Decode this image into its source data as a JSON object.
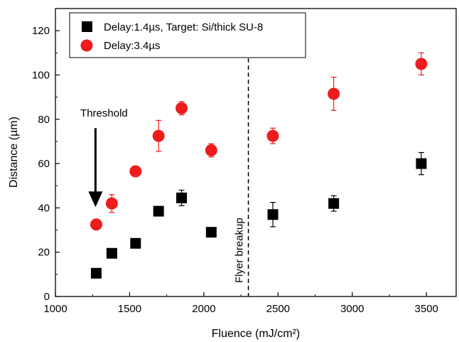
{
  "chart_data": {
    "type": "scatter",
    "xlabel": "Fluence (mJ/cm²)",
    "ylabel": "Distance (µm)",
    "xlim": [
      1000,
      3700
    ],
    "ylim": [
      0,
      130
    ],
    "xticks": [
      1000,
      1500,
      2000,
      2500,
      3000,
      3500
    ],
    "yticks": [
      0,
      20,
      40,
      60,
      80,
      100,
      120
    ],
    "legend_position": "top-left",
    "series": [
      {
        "name": "Delay:1.4µs, Target: Si/thick SU-8",
        "marker": "square",
        "color": "#000000",
        "points": [
          {
            "x": 1275,
            "y": 10.5,
            "err": 0
          },
          {
            "x": 1380,
            "y": 19.5,
            "err": 0
          },
          {
            "x": 1540,
            "y": 24,
            "err": 0
          },
          {
            "x": 1695,
            "y": 38.5,
            "err": 0
          },
          {
            "x": 1850,
            "y": 44.5,
            "err": 3.5
          },
          {
            "x": 2050,
            "y": 29,
            "err": 0
          },
          {
            "x": 2465,
            "y": 37,
            "err": 5.5
          },
          {
            "x": 2875,
            "y": 42,
            "err": 3.5
          },
          {
            "x": 3465,
            "y": 60,
            "err": 5
          }
        ]
      },
      {
        "name": "Delay:3.4µs",
        "marker": "circle",
        "color": "#ee1c1c",
        "points": [
          {
            "x": 1275,
            "y": 32.5,
            "err": 0
          },
          {
            "x": 1380,
            "y": 42,
            "err": 4
          },
          {
            "x": 1540,
            "y": 56.5,
            "err": 0
          },
          {
            "x": 1695,
            "y": 72.5,
            "err": 7
          },
          {
            "x": 1850,
            "y": 85,
            "err": 3
          },
          {
            "x": 2050,
            "y": 66,
            "err": 3
          },
          {
            "x": 2465,
            "y": 72.5,
            "err": 3.5
          },
          {
            "x": 2875,
            "y": 91.5,
            "err": 7.5
          },
          {
            "x": 3465,
            "y": 105,
            "err": 5
          }
        ]
      }
    ],
    "annotations": {
      "threshold": {
        "text": "Threshold",
        "x": 1270,
        "arrow_from_y": 76,
        "arrow_to_y": 41
      },
      "breakup_line": {
        "text": "Flyer breakup",
        "x": 2300,
        "style": "dashed"
      }
    }
  }
}
